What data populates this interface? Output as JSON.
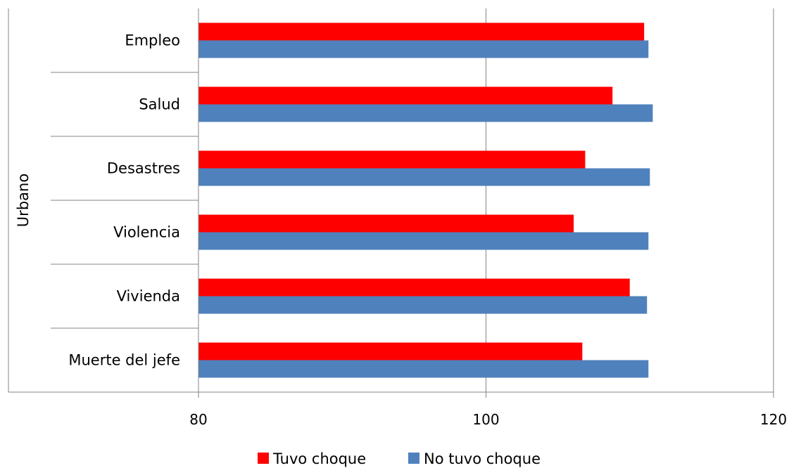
{
  "chart_data": {
    "type": "bar",
    "orientation": "horizontal",
    "group_label": "Urbano",
    "categories": [
      "Empleo",
      "Salud",
      "Desastres",
      "Violencia",
      "Vivienda",
      "Muerte del jefe"
    ],
    "series": [
      {
        "name": "Tuvo choque",
        "color": "#ff0000",
        "values": [
          111.0,
          108.8,
          106.9,
          106.1,
          110.0,
          106.7
        ]
      },
      {
        "name": "No tuvo choque",
        "color": "#4f81bd",
        "values": [
          111.3,
          111.6,
          111.4,
          111.3,
          111.2,
          111.3
        ]
      }
    ],
    "xlim": [
      80,
      120
    ],
    "xticks": [
      {
        "value": 80,
        "label": "80"
      },
      {
        "value": 100,
        "label": "100"
      },
      {
        "value": 120,
        "label": "120"
      }
    ],
    "grid": true,
    "legend_position": "bottom"
  }
}
